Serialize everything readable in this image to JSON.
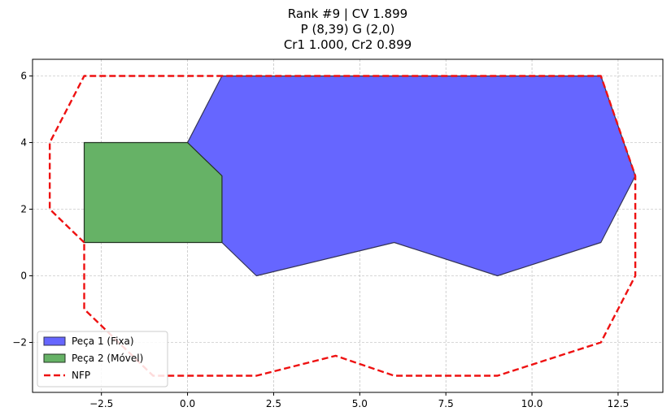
{
  "chart_data": {
    "type": "polygon",
    "title_lines": [
      "Rank #9 | CV 1.899",
      "P (8,39) G (2,0)",
      "Cr1 1.000, Cr2 0.899"
    ],
    "xlim": [
      -4.5,
      13.8
    ],
    "ylim": [
      -3.5,
      6.5
    ],
    "xticks": [
      -2.5,
      0.0,
      2.5,
      5.0,
      7.5,
      10.0,
      12.5
    ],
    "xtick_labels": [
      "−2.5",
      "0.0",
      "2.5",
      "5.0",
      "7.5",
      "10.0",
      "12.5"
    ],
    "yticks": [
      -2,
      0,
      2,
      4,
      6
    ],
    "ytick_labels": [
      "−2",
      "0",
      "2",
      "4",
      "6"
    ],
    "grid": true,
    "legend_position": "lower-left",
    "series": [
      {
        "name": "Peça 1 (Fixa)",
        "kind": "filled-polygon",
        "fill": "#6666ff",
        "edge": "#333355",
        "points": [
          [
            0,
            4
          ],
          [
            1,
            6
          ],
          [
            12,
            6
          ],
          [
            13,
            3
          ],
          [
            12,
            1
          ],
          [
            9,
            0
          ],
          [
            6,
            1
          ],
          [
            2,
            0
          ],
          [
            1,
            1
          ],
          [
            1,
            3
          ]
        ]
      },
      {
        "name": "Peça 2 (Móvel)",
        "kind": "filled-polygon",
        "fill": "#66b266",
        "edge": "#223322",
        "points": [
          [
            -3,
            1
          ],
          [
            -3,
            4
          ],
          [
            0,
            4
          ],
          [
            1,
            3
          ],
          [
            1,
            1
          ]
        ]
      },
      {
        "name": "NFP",
        "kind": "dashed-line",
        "color": "#ee1111",
        "points": [
          [
            -3,
            1
          ],
          [
            -4,
            2
          ],
          [
            -4,
            4
          ],
          [
            -3,
            6
          ],
          [
            12,
            6
          ],
          [
            13,
            3
          ],
          [
            13,
            0
          ],
          [
            12,
            -2
          ],
          [
            9,
            -3
          ],
          [
            6,
            -3
          ],
          [
            4.3,
            -2.4
          ],
          [
            2,
            -3
          ],
          [
            -1,
            -3
          ],
          [
            -3,
            -1
          ],
          [
            -3,
            1
          ]
        ]
      }
    ]
  }
}
